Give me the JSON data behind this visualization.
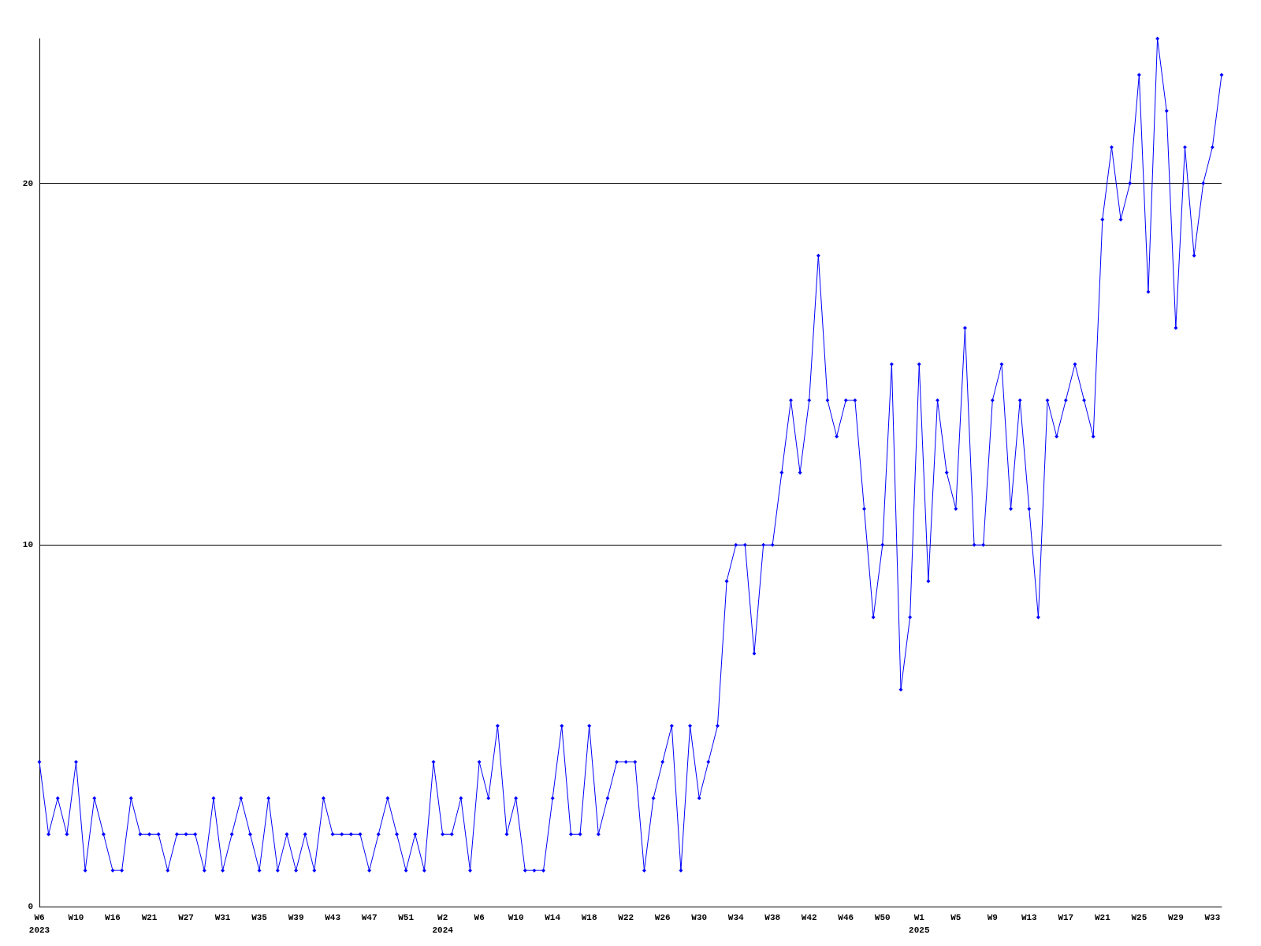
{
  "chart_data": {
    "type": "line",
    "categories": [
      "W6\n2023",
      null,
      null,
      null,
      "W10",
      null,
      null,
      null,
      "W16",
      null,
      null,
      null,
      "W21",
      null,
      null,
      null,
      "W27",
      null,
      null,
      null,
      "W31",
      null,
      null,
      null,
      "W35",
      null,
      null,
      null,
      "W39",
      null,
      null,
      null,
      "W43",
      null,
      null,
      null,
      "W47",
      null,
      null,
      null,
      "W51",
      null,
      null,
      null,
      "W2\n2024",
      null,
      null,
      null,
      "W6",
      null,
      null,
      null,
      "W10",
      null,
      null,
      null,
      "W14",
      null,
      null,
      null,
      "W18",
      null,
      null,
      null,
      "W22",
      null,
      null,
      null,
      "W26",
      null,
      null,
      null,
      "W30",
      null,
      null,
      null,
      "W34",
      null,
      null,
      null,
      "W38",
      null,
      null,
      null,
      "W42",
      null,
      null,
      null,
      "W46",
      null,
      null,
      null,
      "W50",
      null,
      null,
      null,
      "W1\n2025",
      null,
      null,
      null,
      "W5",
      null,
      null,
      null,
      "W9",
      null,
      null,
      null,
      "W13",
      null,
      null,
      null,
      "W17",
      null,
      null,
      null,
      "W21",
      null,
      null,
      null,
      "W25",
      null,
      null,
      null,
      "W29",
      null,
      null,
      null,
      "W33",
      null
    ],
    "series": [
      {
        "color": "#0000ff",
        "values": [
          4,
          2,
          3,
          2,
          4,
          1,
          3,
          2,
          1,
          1,
          3,
          2,
          2,
          2,
          1,
          2,
          2,
          2,
          1,
          3,
          1,
          2,
          3,
          2,
          1,
          3,
          1,
          2,
          1,
          2,
          1,
          3,
          2,
          2,
          2,
          2,
          1,
          2,
          3,
          2,
          1,
          2,
          1,
          4,
          2,
          2,
          3,
          1,
          4,
          3,
          5,
          2,
          3,
          1,
          1,
          1,
          3,
          5,
          2,
          2,
          5,
          2,
          3,
          4,
          4,
          4,
          1,
          3,
          4,
          5,
          1,
          5,
          3,
          4,
          5,
          9,
          10,
          10,
          7,
          10,
          10,
          12,
          14,
          12,
          14,
          18,
          14,
          13,
          14,
          14,
          11,
          8,
          10,
          15,
          6,
          8,
          15,
          9,
          14,
          12,
          11,
          16,
          10,
          10,
          14,
          15,
          11,
          14,
          11,
          8,
          14,
          13,
          14,
          15,
          14,
          13,
          19,
          21,
          19,
          20,
          23,
          17,
          24,
          22,
          16,
          21,
          18,
          20,
          21,
          23
        ]
      }
    ],
    "ylim": [
      0,
      24
    ],
    "yticks": [
      0,
      10,
      20
    ],
    "grid": "y",
    "marker": "diamond",
    "line_style": "solid"
  }
}
